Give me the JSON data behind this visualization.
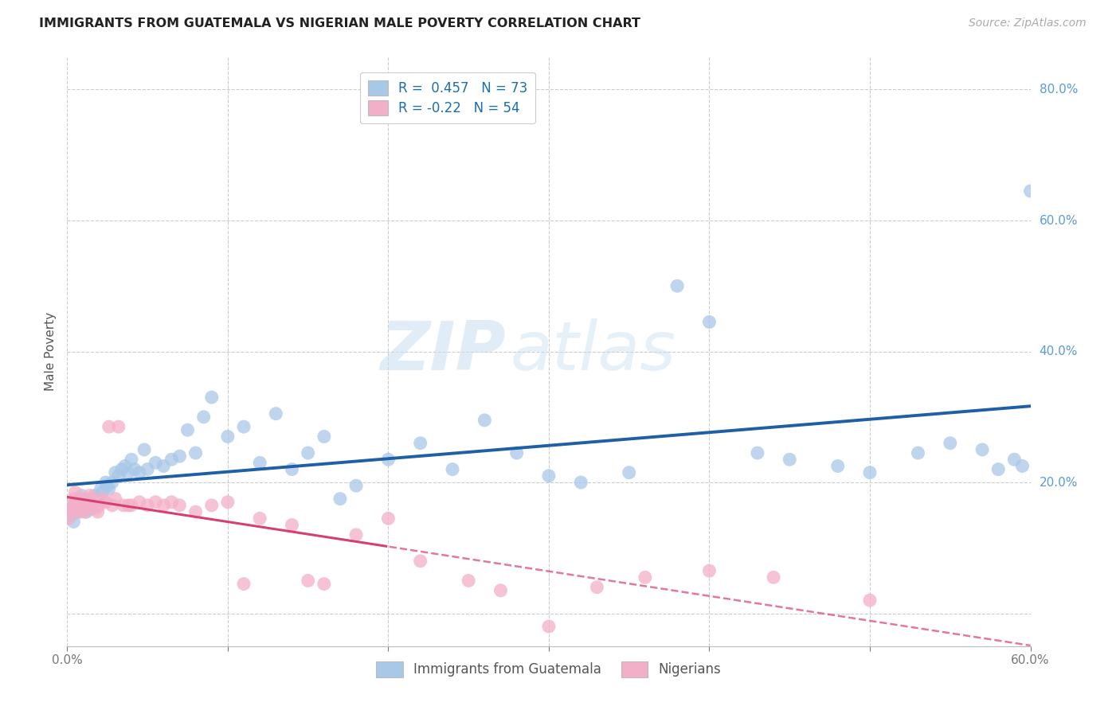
{
  "title": "IMMIGRANTS FROM GUATEMALA VS NIGERIAN MALE POVERTY CORRELATION CHART",
  "source": "Source: ZipAtlas.com",
  "ylabel": "Male Poverty",
  "x_min": 0.0,
  "x_max": 0.6,
  "y_min": -0.05,
  "y_max": 0.85,
  "blue_R": 0.457,
  "blue_N": 73,
  "pink_R": -0.22,
  "pink_N": 54,
  "blue_color": "#a8c8e8",
  "blue_line_color": "#1f5fa6",
  "pink_color": "#f4afc8",
  "pink_line_color": "#d64070",
  "legend_label_blue": "Immigrants from Guatemala",
  "legend_label_pink": "Nigerians",
  "watermark_zip": "ZIP",
  "watermark_atlas": "atlas",
  "blue_scatter_x": [
    0.002,
    0.003,
    0.004,
    0.005,
    0.006,
    0.007,
    0.008,
    0.009,
    0.01,
    0.011,
    0.012,
    0.013,
    0.014,
    0.015,
    0.016,
    0.017,
    0.018,
    0.019,
    0.02,
    0.021,
    0.022,
    0.024,
    0.025,
    0.026,
    0.028,
    0.03,
    0.032,
    0.034,
    0.036,
    0.038,
    0.04,
    0.042,
    0.045,
    0.048,
    0.05,
    0.055,
    0.06,
    0.065,
    0.07,
    0.075,
    0.08,
    0.085,
    0.09,
    0.1,
    0.11,
    0.12,
    0.13,
    0.14,
    0.15,
    0.16,
    0.17,
    0.18,
    0.2,
    0.22,
    0.24,
    0.26,
    0.28,
    0.3,
    0.32,
    0.35,
    0.38,
    0.4,
    0.43,
    0.45,
    0.48,
    0.5,
    0.53,
    0.55,
    0.57,
    0.58,
    0.59,
    0.595,
    0.6
  ],
  "blue_scatter_y": [
    0.15,
    0.16,
    0.14,
    0.155,
    0.17,
    0.16,
    0.155,
    0.18,
    0.165,
    0.17,
    0.155,
    0.17,
    0.165,
    0.16,
    0.175,
    0.18,
    0.165,
    0.175,
    0.17,
    0.19,
    0.185,
    0.2,
    0.195,
    0.19,
    0.2,
    0.215,
    0.21,
    0.22,
    0.225,
    0.215,
    0.235,
    0.22,
    0.215,
    0.25,
    0.22,
    0.23,
    0.225,
    0.235,
    0.24,
    0.28,
    0.245,
    0.3,
    0.33,
    0.27,
    0.285,
    0.23,
    0.305,
    0.22,
    0.245,
    0.27,
    0.175,
    0.195,
    0.235,
    0.26,
    0.22,
    0.295,
    0.245,
    0.21,
    0.2,
    0.215,
    0.5,
    0.445,
    0.245,
    0.235,
    0.225,
    0.215,
    0.245,
    0.26,
    0.25,
    0.22,
    0.235,
    0.225,
    0.645
  ],
  "pink_scatter_x": [
    0.001,
    0.002,
    0.003,
    0.004,
    0.005,
    0.006,
    0.007,
    0.008,
    0.009,
    0.01,
    0.011,
    0.012,
    0.013,
    0.014,
    0.015,
    0.016,
    0.017,
    0.018,
    0.019,
    0.02,
    0.022,
    0.024,
    0.026,
    0.028,
    0.03,
    0.032,
    0.035,
    0.038,
    0.04,
    0.045,
    0.05,
    0.055,
    0.06,
    0.065,
    0.07,
    0.08,
    0.09,
    0.1,
    0.11,
    0.12,
    0.14,
    0.15,
    0.16,
    0.18,
    0.2,
    0.22,
    0.25,
    0.27,
    0.3,
    0.33,
    0.36,
    0.4,
    0.44,
    0.5
  ],
  "pink_scatter_y": [
    0.145,
    0.155,
    0.165,
    0.175,
    0.185,
    0.17,
    0.155,
    0.16,
    0.175,
    0.16,
    0.155,
    0.17,
    0.165,
    0.18,
    0.175,
    0.165,
    0.17,
    0.16,
    0.155,
    0.165,
    0.175,
    0.17,
    0.285,
    0.165,
    0.175,
    0.285,
    0.165,
    0.165,
    0.165,
    0.17,
    0.165,
    0.17,
    0.165,
    0.17,
    0.165,
    0.155,
    0.165,
    0.17,
    0.045,
    0.145,
    0.135,
    0.05,
    0.045,
    0.12,
    0.145,
    0.08,
    0.05,
    0.035,
    -0.02,
    0.04,
    0.055,
    0.065,
    0.055,
    0.02
  ]
}
